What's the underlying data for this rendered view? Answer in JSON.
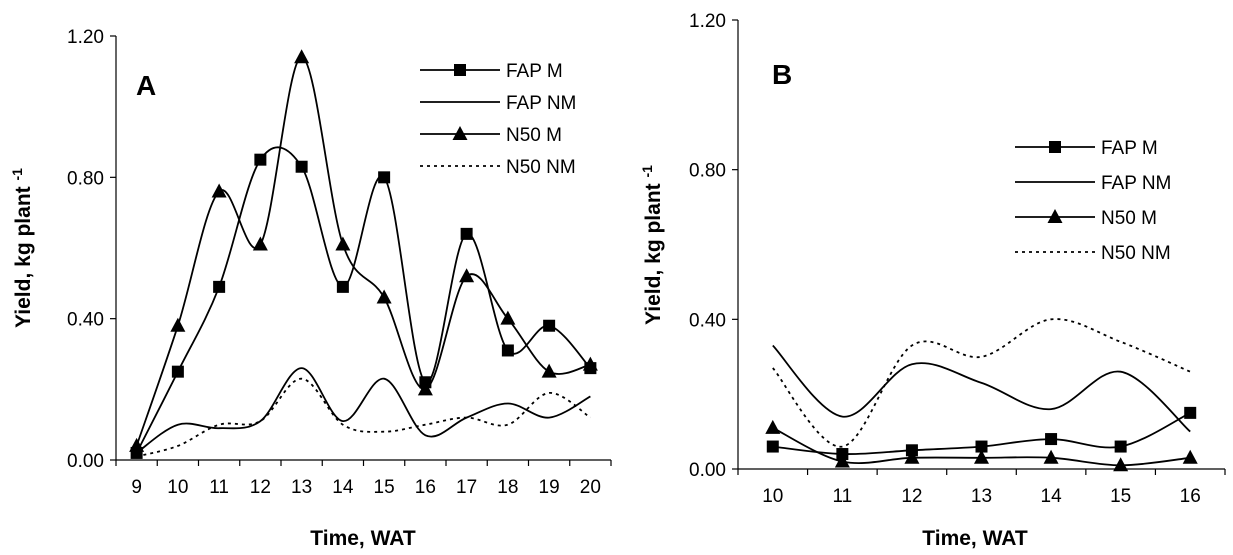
{
  "chart_data": [
    {
      "type": "line",
      "panel_label": "A",
      "xlabel": "Time, WAT",
      "ylabel": "Yield, kg plant",
      "ylabel_superscript": "-1",
      "x": [
        9,
        10,
        11,
        12,
        13,
        14,
        15,
        16,
        17,
        18,
        19,
        20
      ],
      "x_tick_labels": [
        "9",
        "10",
        "11",
        "12",
        "13",
        "14",
        "15",
        "16",
        "17",
        "18",
        "19",
        "20"
      ],
      "ylim": [
        0,
        1.2
      ],
      "y_tick_labels": [
        "0.00",
        "0.40",
        "0.80",
        "1.20"
      ],
      "grid": false,
      "legend_position": "top-right",
      "series": [
        {
          "name": "FAP M",
          "marker": "square",
          "line": "solid",
          "values": [
            0.02,
            0.25,
            0.49,
            0.85,
            0.83,
            0.49,
            0.8,
            0.22,
            0.64,
            0.31,
            0.38,
            0.26
          ]
        },
        {
          "name": "FAP NM",
          "marker": "none",
          "line": "solid",
          "values": [
            0.02,
            0.1,
            0.09,
            0.11,
            0.26,
            0.11,
            0.23,
            0.07,
            0.12,
            0.16,
            0.12,
            0.18
          ]
        },
        {
          "name": "N50 M",
          "marker": "triangle",
          "line": "solid",
          "values": [
            0.04,
            0.38,
            0.76,
            0.61,
            1.14,
            0.61,
            0.46,
            0.2,
            0.52,
            0.4,
            0.25,
            0.27
          ]
        },
        {
          "name": "N50 NM",
          "marker": "none",
          "line": "dotted",
          "values": [
            0.01,
            0.04,
            0.1,
            0.11,
            0.23,
            0.1,
            0.08,
            0.1,
            0.12,
            0.1,
            0.19,
            0.12
          ]
        }
      ]
    },
    {
      "type": "line",
      "panel_label": "B",
      "xlabel": "Time, WAT",
      "ylabel": "Yield, kg plant",
      "ylabel_superscript": "-1",
      "x": [
        10,
        11,
        12,
        13,
        14,
        15,
        16
      ],
      "x_tick_labels": [
        "10",
        "11",
        "12",
        "13",
        "14",
        "15",
        "16"
      ],
      "ylim": [
        0,
        1.2
      ],
      "y_tick_labels": [
        "0.00",
        "0.40",
        "0.80",
        "1.20"
      ],
      "grid": false,
      "legend_position": "right",
      "series": [
        {
          "name": "FAP M",
          "marker": "square",
          "line": "solid",
          "values": [
            0.06,
            0.04,
            0.05,
            0.06,
            0.08,
            0.06,
            0.15
          ]
        },
        {
          "name": "FAP NM",
          "marker": "none",
          "line": "solid",
          "values": [
            0.33,
            0.14,
            0.28,
            0.23,
            0.16,
            0.26,
            0.1
          ]
        },
        {
          "name": "N50 M",
          "marker": "triangle",
          "line": "solid",
          "values": [
            0.11,
            0.02,
            0.03,
            0.03,
            0.03,
            0.01,
            0.03
          ]
        },
        {
          "name": "N50 NM",
          "marker": "none",
          "line": "dotted",
          "values": [
            0.27,
            0.06,
            0.33,
            0.3,
            0.4,
            0.34,
            0.26
          ]
        }
      ]
    }
  ]
}
